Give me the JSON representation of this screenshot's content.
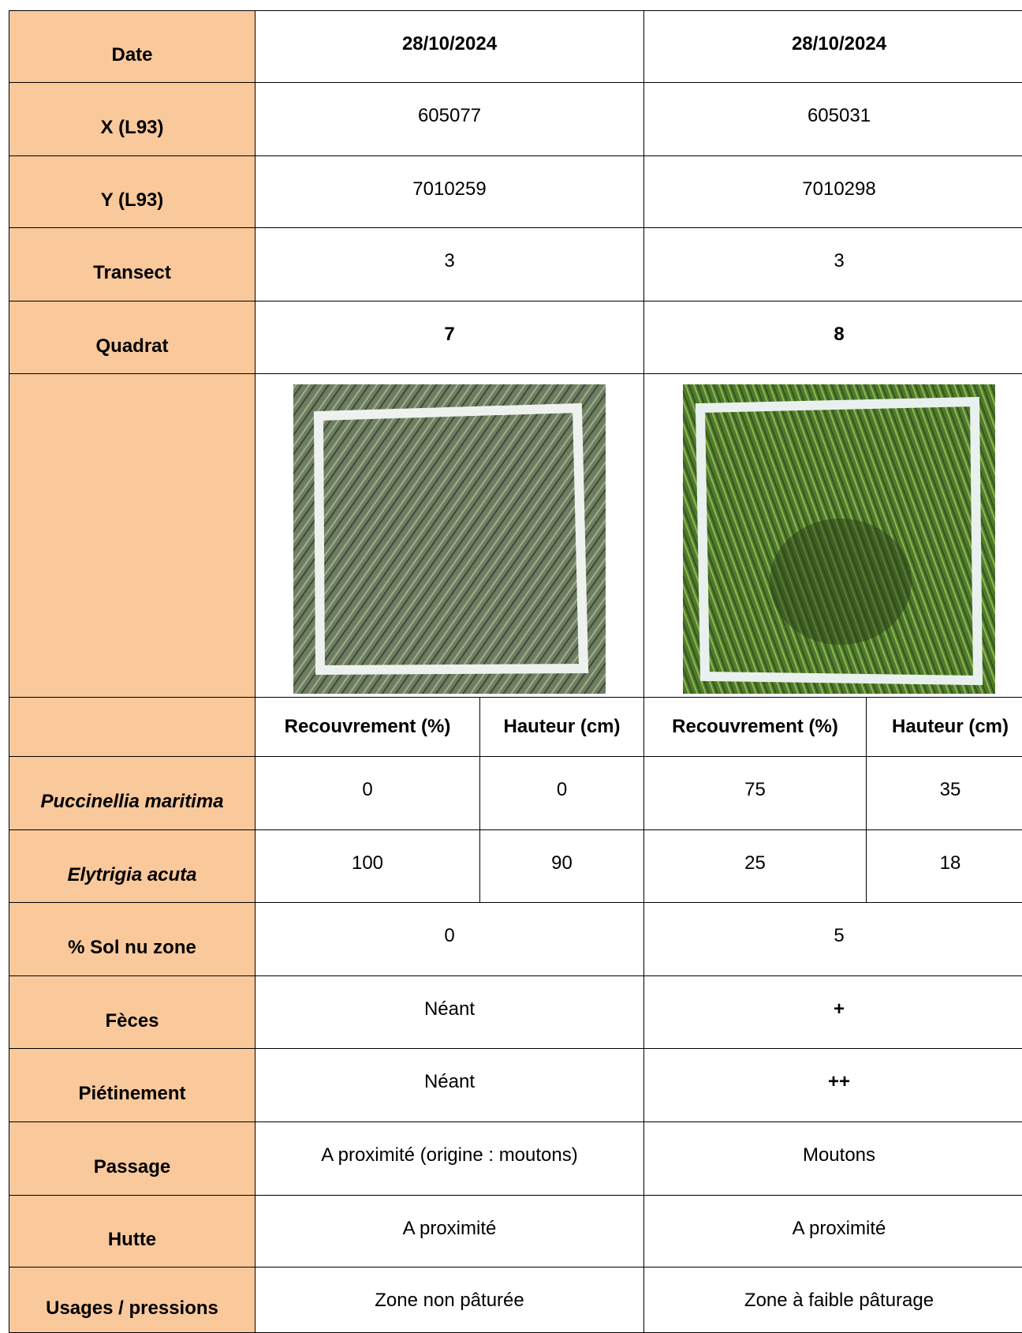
{
  "table": {
    "rows": [
      [
        "Date",
        "28/10/2024",
        "28/10/2024"
      ],
      [
        "X (L93)",
        605077,
        605031
      ],
      [
        "Y (L93)",
        7010259,
        7010298
      ],
      [
        "Transect",
        3,
        3
      ],
      [
        "Quadrat",
        7,
        8
      ]
    ],
    "subheader": [
      "Recouvrement (%)",
      "Hauteur (cm)",
      "Recouvrement (%)",
      "Hauteur (cm)"
    ],
    "species_rows": [
      [
        "Puccinellia maritima",
        0,
        0,
        75,
        35
      ],
      [
        "Elytrigia acuta",
        100,
        90,
        25,
        18
      ]
    ],
    "rows_after": [
      [
        "% Sol nu zone",
        0,
        5
      ],
      [
        "Fèces",
        "Néant",
        "+"
      ],
      [
        "Piétinement",
        "Néant",
        "++"
      ],
      [
        "Passage",
        "A proximité (origine : moutons)",
        "Moutons"
      ],
      [
        "Hutte",
        "A proximité",
        "A proximité"
      ],
      [
        "Usages / pressions",
        "Zone non pâturée",
        "Zone à faible pâturage"
      ]
    ]
  }
}
